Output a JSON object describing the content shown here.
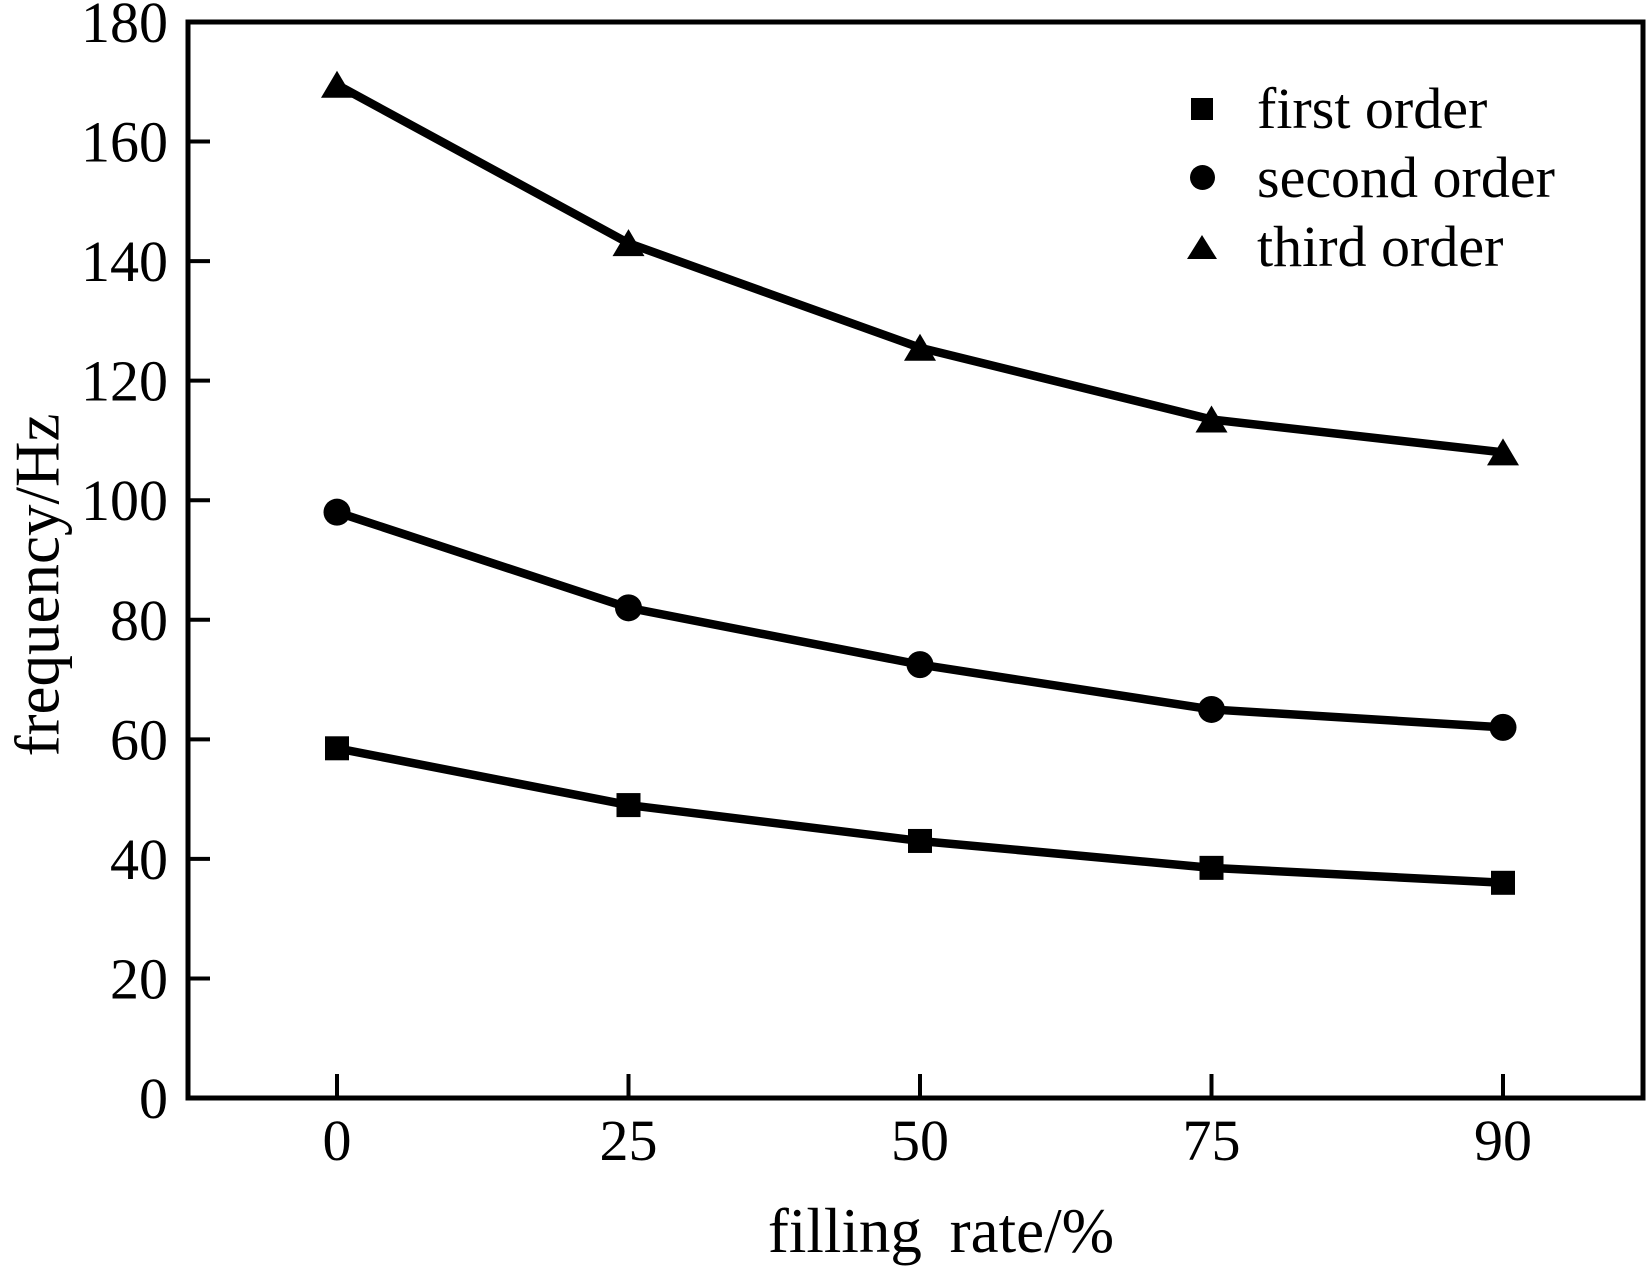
{
  "chart_data": {
    "type": "line",
    "title": "",
    "xlabel": "filling rate/%",
    "ylabel": "frequency/Hz",
    "categories": [
      0,
      25,
      50,
      75,
      90
    ],
    "x_tick_labels": [
      "0",
      "25",
      "50",
      "75",
      "90"
    ],
    "y_ticks": [
      0,
      20,
      40,
      60,
      80,
      100,
      120,
      140,
      160,
      180
    ],
    "ylim": [
      0,
      180
    ],
    "grid": false,
    "legend_position": "top-right-inside",
    "line_color": "#000000",
    "background_color": "#ffffff",
    "series": [
      {
        "name": "first order",
        "marker": "square",
        "values": [
          58.5,
          49,
          43,
          38.5,
          36
        ]
      },
      {
        "name": "second order",
        "marker": "circle",
        "values": [
          98,
          82,
          72.5,
          65,
          62
        ]
      },
      {
        "name": "third order",
        "marker": "triangle",
        "values": [
          169.5,
          143,
          125.5,
          113.5,
          108
        ]
      }
    ]
  },
  "legend": {
    "entries": [
      {
        "label": "first order",
        "marker_icon": "square-marker-icon"
      },
      {
        "label": "second order",
        "marker_icon": "circle-marker-icon"
      },
      {
        "label": "third order",
        "marker_icon": "triangle-marker-icon"
      }
    ]
  }
}
